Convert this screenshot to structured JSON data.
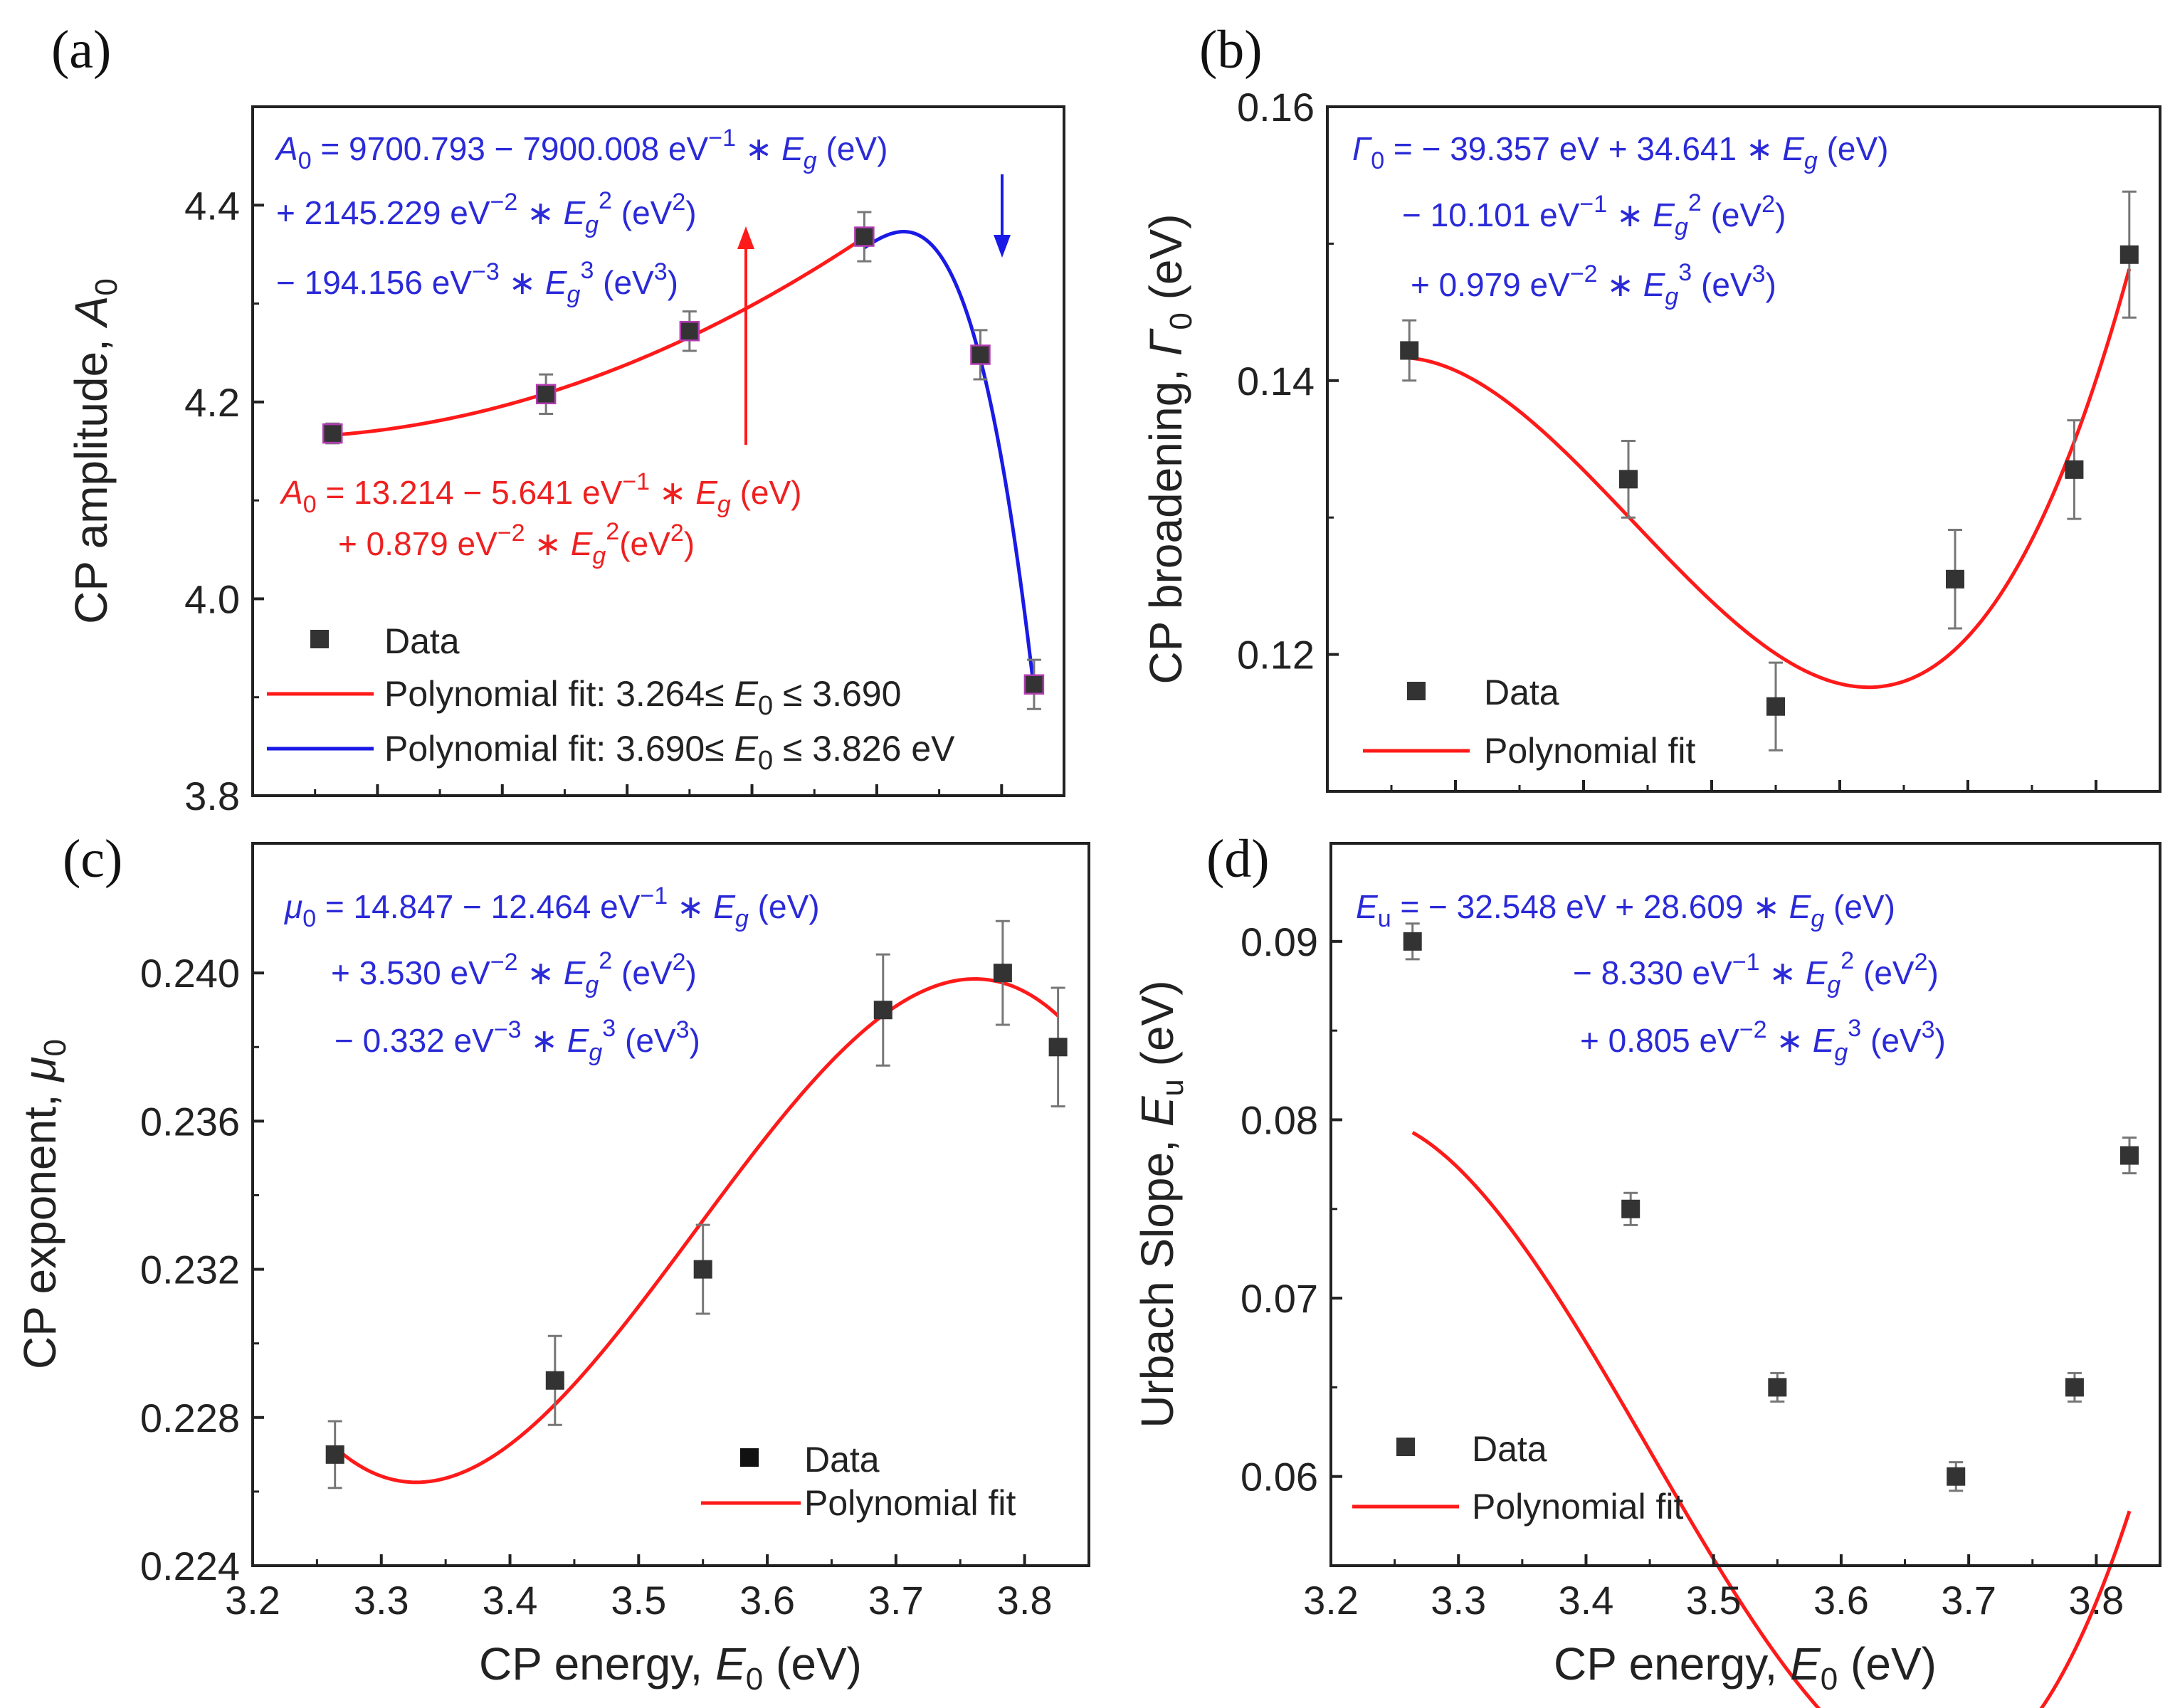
{
  "chart_data": [
    {
      "panel": "(a)",
      "type": "scatter",
      "xlabel": "",
      "ylabel": "CP amplitude, A0",
      "ylabel_parts": [
        "CP amplitude, ",
        "A",
        "0"
      ],
      "xlim": [
        3.2,
        3.85
      ],
      "ylim": [
        3.8,
        4.5
      ],
      "yticks": [
        "3.8",
        "4.0",
        "4.2",
        "4.4"
      ],
      "ytick_values": [
        3.8,
        4.0,
        4.2,
        4.4
      ],
      "x": [
        3.264,
        3.435,
        3.55,
        3.69,
        3.783,
        3.826
      ],
      "y": [
        4.168,
        4.208,
        4.272,
        4.368,
        4.248,
        3.913
      ],
      "yerr": [
        0.01,
        0.02,
        0.02,
        0.025,
        0.025,
        0.025
      ],
      "fits": [
        {
          "name": "Polynomial fit: 3.264≤ E0 ≤ 3.690",
          "color": "#ff1a1a",
          "coeffs": [
            13.214,
            -5.641,
            0.879
          ],
          "xrange": [
            3.264,
            3.69
          ]
        },
        {
          "name": "Polynomial fit: 3.690≤ E0 ≤ 3.826 eV",
          "color": "#1a1ae6",
          "coeffs": [
            9700.793,
            -7900.008,
            2145.229,
            -194.156
          ],
          "xrange": [
            3.69,
            3.826
          ]
        }
      ],
      "legend": {
        "data": "Data",
        "fit1_prefix": "Polynomial fit: 3.264≤ ",
        "fit1_var": "E",
        "fit1_sub": "0",
        "fit1_suffix": " ≤ 3.690",
        "fit2_prefix": "Polynomial fit: 3.690≤ ",
        "fit2_var": "E",
        "fit2_sub": "0",
        "fit2_suffix": " ≤ 3.826 eV"
      },
      "equations": {
        "blue": [
          [
            "A",
            "0",
            " = 9700.793 − 7900.008 eV",
            "−1",
            " ∗ ",
            "E",
            "g",
            " (eV)"
          ],
          [
            "+ 2145.229 eV",
            "−2",
            " ∗ ",
            "E",
            "g",
            "2",
            " (eV",
            "2",
            ")"
          ],
          [
            "− 194.156 eV",
            "−3",
            " ∗ ",
            "E",
            "g",
            "3",
            " (eV",
            "3",
            ")"
          ]
        ],
        "red": [
          [
            "A",
            "0",
            " = 13.214 − 5.641 eV",
            "−1",
            " ∗ ",
            "E",
            "g",
            " (eV)"
          ],
          [
            "+ 0.879 eV",
            "−2",
            " ∗ ",
            "E",
            "g",
            "2",
            "(eV",
            "2",
            ")"
          ]
        ]
      }
    },
    {
      "panel": "(b)",
      "type": "scatter",
      "ylabel_parts": [
        "CP broadening, ",
        "Γ",
        "0",
        " (eV)"
      ],
      "xlim": [
        3.2,
        3.85
      ],
      "ylim": [
        0.11,
        0.16
      ],
      "yticks": [
        "0.12",
        "0.14",
        "0.16"
      ],
      "ytick_values": [
        0.12,
        0.14,
        0.16
      ],
      "x": [
        3.264,
        3.435,
        3.55,
        3.69,
        3.783,
        3.826
      ],
      "y": [
        0.1422,
        0.1328,
        0.1162,
        0.1255,
        0.1335,
        0.1492
      ],
      "yerr": [
        0.0022,
        0.0028,
        0.0032,
        0.0036,
        0.0036,
        0.0046
      ],
      "fits": [
        {
          "name": "Polynomial fit",
          "color": "#ff1a1a",
          "coeffs": [
            -39.357,
            34.641,
            -10.101,
            0.979
          ],
          "xrange": [
            3.264,
            3.826
          ]
        }
      ],
      "legend": {
        "data": "Data",
        "fit": "Polynomial fit"
      },
      "equations": {
        "blue": [
          [
            "Γ",
            "0",
            " = − 39.357 eV + 34.641 ∗ ",
            "E",
            "g",
            " (eV)"
          ],
          [
            "− 10.101 eV",
            "−1",
            " ∗ ",
            "E",
            "g",
            "2",
            " (eV",
            "2",
            ")"
          ],
          [
            "+ 0.979 eV",
            "−2",
            " ∗ ",
            "E",
            "g",
            "3",
            " (eV",
            "3",
            ")"
          ]
        ]
      }
    },
    {
      "panel": "(c)",
      "type": "scatter",
      "xlabel_parts": [
        "CP energy, ",
        "E",
        "0",
        " (eV)"
      ],
      "ylabel_parts": [
        "CP exponent, ",
        "μ",
        "0"
      ],
      "xlim": [
        3.2,
        3.85
      ],
      "ylim": [
        0.224,
        0.2435
      ],
      "xticks": [
        "3.2",
        "3.3",
        "3.4",
        "3.5",
        "3.6",
        "3.7",
        "3.8"
      ],
      "xtick_values": [
        3.2,
        3.3,
        3.4,
        3.5,
        3.6,
        3.7,
        3.8
      ],
      "yticks": [
        "0.224",
        "0.228",
        "0.232",
        "0.236",
        "0.240"
      ],
      "ytick_values": [
        0.224,
        0.228,
        0.232,
        0.236,
        0.24
      ],
      "x": [
        3.264,
        3.435,
        3.55,
        3.69,
        3.783,
        3.826
      ],
      "y": [
        0.227,
        0.229,
        0.232,
        0.239,
        0.24,
        0.238
      ],
      "yerr": [
        0.0009,
        0.0012,
        0.0012,
        0.0015,
        0.0014,
        0.0016
      ],
      "fits": [
        {
          "name": "Polynomial fit",
          "color": "#ff1a1a",
          "coeffs": [
            14.847,
            -12.464,
            3.53,
            -0.332
          ],
          "xrange": [
            3.264,
            3.826
          ]
        }
      ],
      "legend": {
        "data": "Data",
        "fit": "Polynomial fit"
      },
      "equations": {
        "blue": [
          [
            "μ",
            "0",
            " = 14.847 − 12.464 eV",
            "−1",
            " ∗ ",
            "E",
            "g",
            " (eV)"
          ],
          [
            "+ 3.530 eV",
            "−2",
            " ∗ ",
            "E",
            "g",
            "2",
            " (eV",
            "2",
            ")"
          ],
          [
            "− 0.332 eV",
            "−3",
            " ∗ ",
            "E",
            "g",
            "3",
            " (eV",
            "3",
            ")"
          ]
        ]
      }
    },
    {
      "panel": "(d)",
      "type": "scatter",
      "xlabel_parts": [
        "CP energy, ",
        "E",
        "0",
        " (eV)"
      ],
      "ylabel_parts": [
        "Urbach Slope, ",
        "E",
        "u",
        " (eV)"
      ],
      "xlim": [
        3.2,
        3.85
      ],
      "ylim": [
        0.055,
        0.0955
      ],
      "xticks": [
        "3.2",
        "3.3",
        "3.4",
        "3.5",
        "3.6",
        "3.7",
        "3.8"
      ],
      "xtick_values": [
        3.2,
        3.3,
        3.4,
        3.5,
        3.6,
        3.7,
        3.8
      ],
      "yticks": [
        "0.06",
        "0.07",
        "0.08",
        "0.09"
      ],
      "ytick_values": [
        0.06,
        0.07,
        0.08,
        0.09
      ],
      "x": [
        3.264,
        3.435,
        3.55,
        3.69,
        3.783,
        3.826
      ],
      "y": [
        0.09,
        0.075,
        0.065,
        0.06,
        0.065,
        0.078
      ],
      "yerr": [
        0.001,
        0.0009,
        0.0008,
        0.0008,
        0.0008,
        0.001
      ],
      "fits": [
        {
          "name": "Polynomial fit",
          "color": "#ff1a1a",
          "coeffs": [
            -32.548,
            28.609,
            -8.33,
            0.805
          ],
          "xrange": [
            3.264,
            3.826
          ]
        }
      ],
      "legend": {
        "data": "Data",
        "fit": "Polynomial fit"
      },
      "equations": {
        "blue": [
          [
            "E",
            "u",
            " = − 32.548 eV + 28.609 ∗ ",
            "E",
            "g",
            " (eV)"
          ],
          [
            "− 8.330 eV",
            "−1",
            " ∗ ",
            "E",
            "g",
            "2",
            " (eV",
            "2",
            ")"
          ],
          [
            "+ 0.805 eV",
            "−2",
            " ∗ ",
            "E",
            "g",
            "3",
            " (eV",
            "3",
            ")"
          ]
        ]
      }
    }
  ]
}
